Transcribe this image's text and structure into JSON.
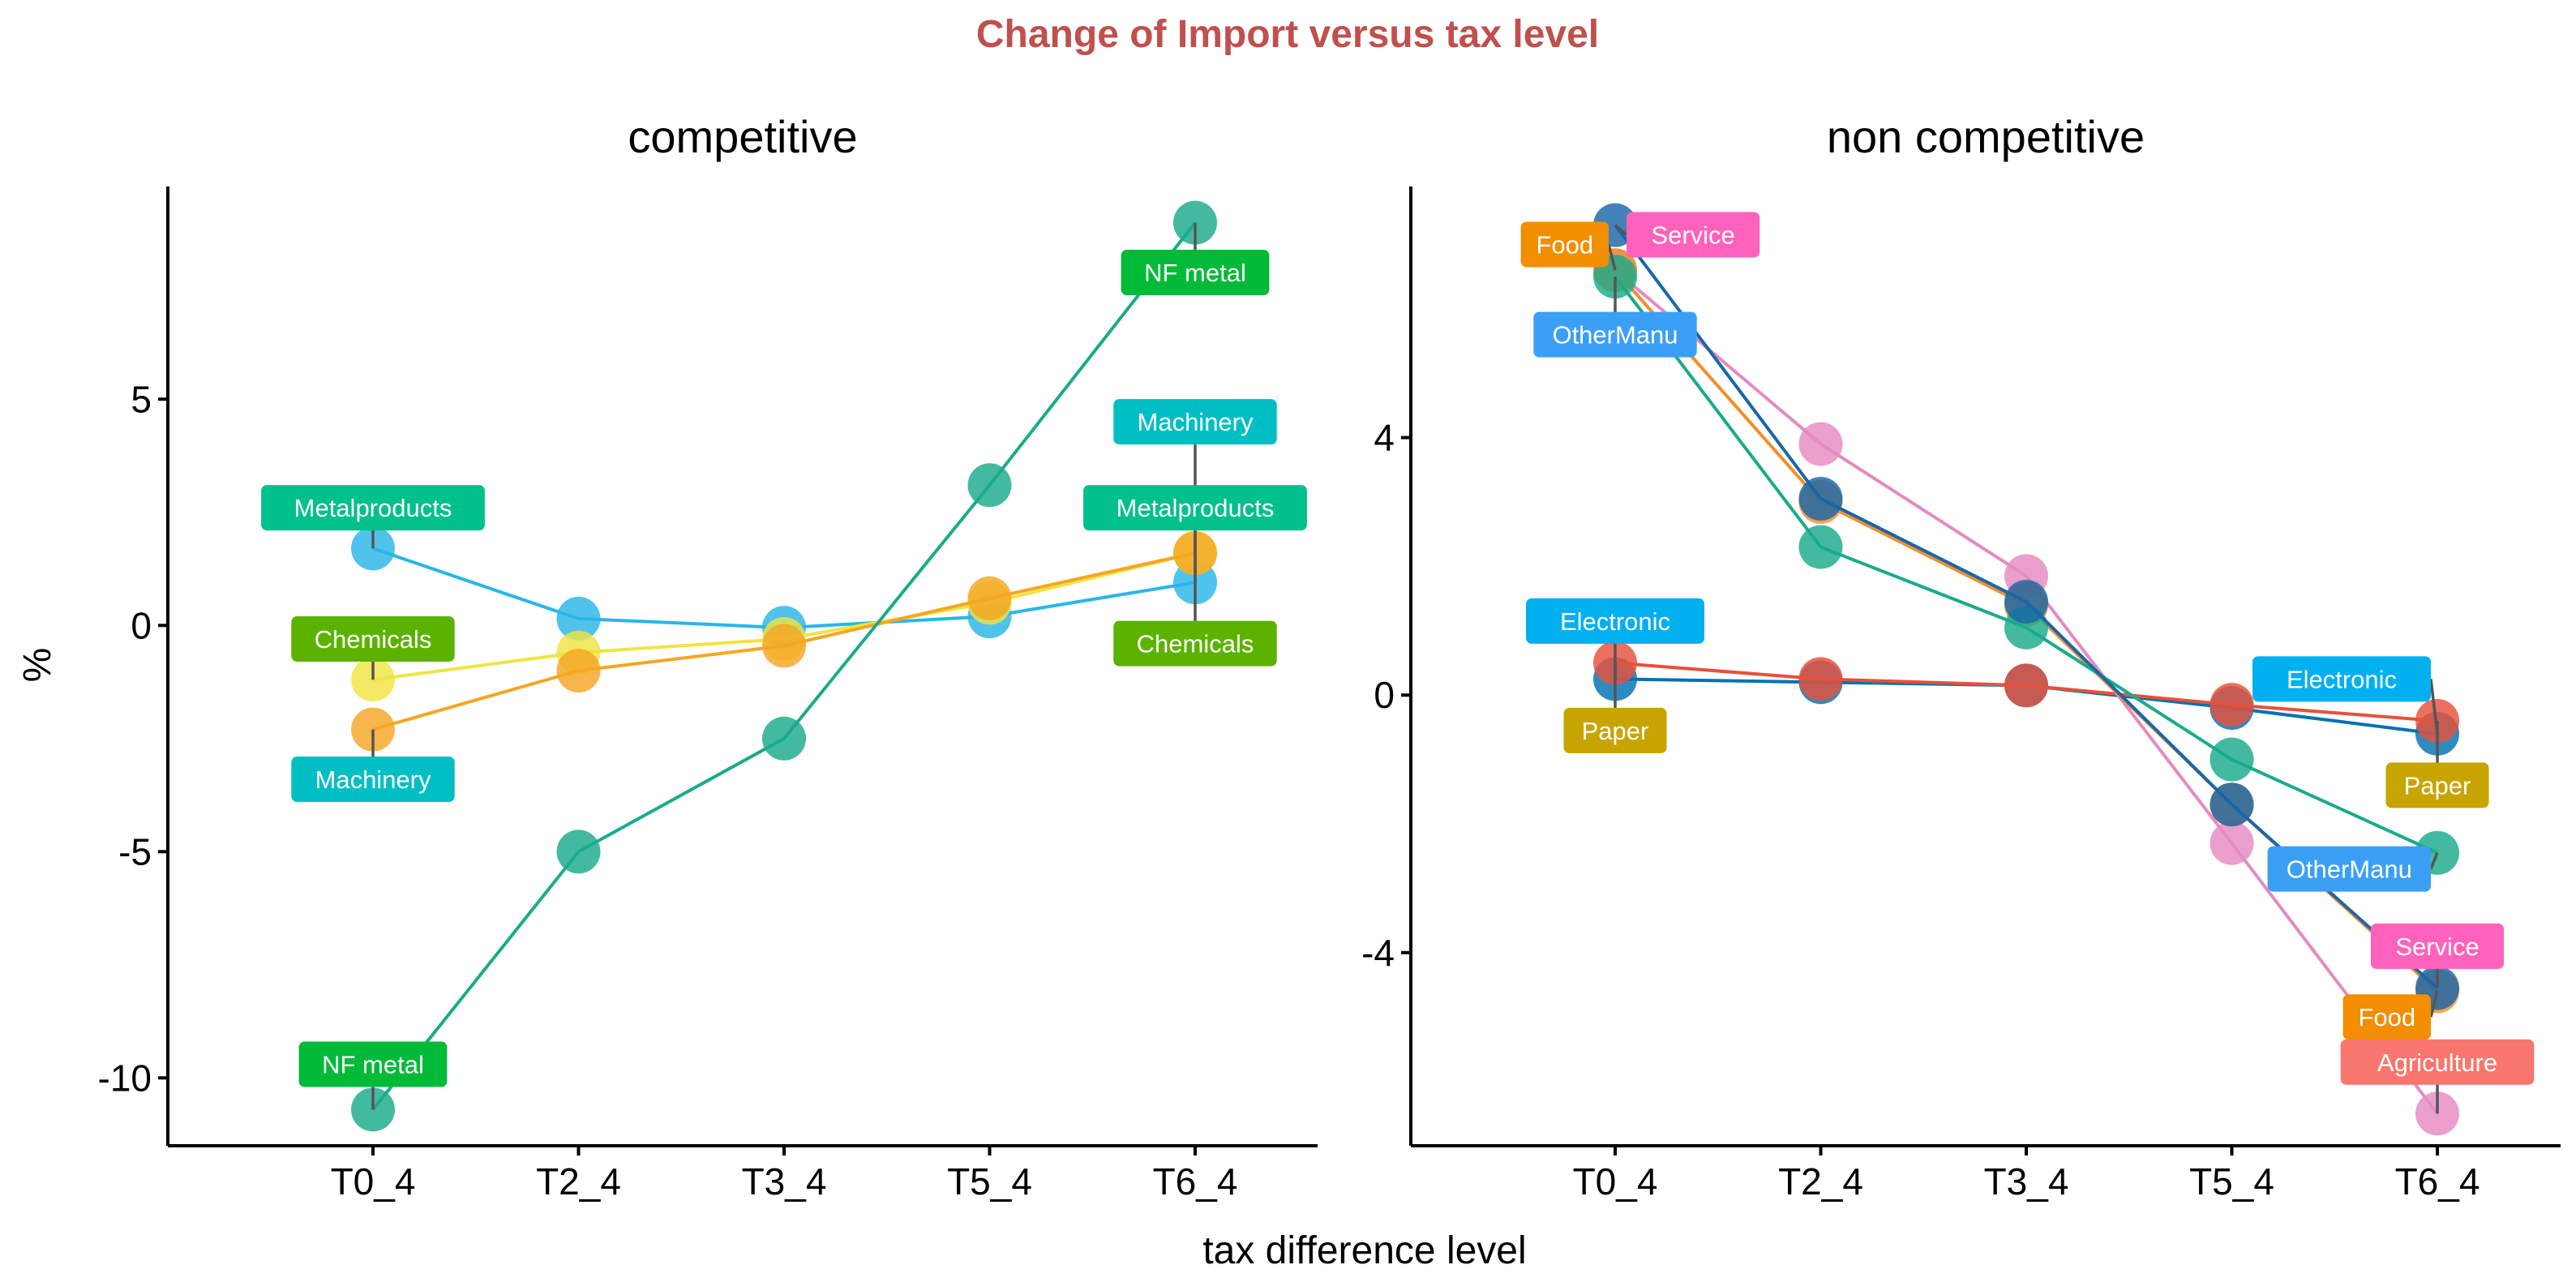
{
  "chart_data": {
    "type": "line",
    "title": "Change of Import versus tax level",
    "xlabel": "tax difference level",
    "ylabel": "%",
    "categories": [
      "T0_4",
      "T2_4",
      "T3_4",
      "T5_4",
      "T6_4"
    ],
    "colors": {
      "title": "#c0504d"
    },
    "panels": [
      {
        "name": "competitive",
        "ylim": [
          -11.5,
          9.7
        ],
        "yticks": [
          -10,
          -5,
          0,
          5
        ],
        "ytick_labels": [
          "-10",
          "-5",
          "0",
          "5"
        ],
        "series": [
          {
            "name": "Metalproducts",
            "color": "#29b6e8",
            "values": [
              1.7,
              0.15,
              -0.05,
              0.2,
              0.95
            ]
          },
          {
            "name": "Chemicals",
            "color": "#f0e442",
            "values": [
              -1.2,
              -0.6,
              -0.3,
              0.5,
              1.6
            ]
          },
          {
            "name": "Machinery",
            "color": "#f5a623",
            "values": [
              -2.3,
              -1.0,
              -0.45,
              0.6,
              1.6
            ]
          },
          {
            "name": "NF metal",
            "color": "#1aab8a",
            "values": [
              -10.7,
              -5.0,
              -2.5,
              3.1,
              8.9
            ]
          }
        ],
        "labels": [
          {
            "text": "Metalproducts",
            "series": "Metalproducts",
            "category": "T0_4",
            "value": 2.6,
            "color": "#00c08b"
          },
          {
            "text": "Chemicals",
            "series": "Chemicals",
            "category": "T0_4",
            "value": -0.3,
            "color": "#5bb300"
          },
          {
            "text": "Machinery",
            "series": "Machinery",
            "category": "T0_4",
            "value": -3.4,
            "color": "#00bfc4"
          },
          {
            "text": "NF metal",
            "series": "NF metal",
            "category": "T0_4",
            "value": -9.7,
            "color": "#00ba38"
          },
          {
            "text": "NF metal",
            "series": "NF metal",
            "category": "T6_4",
            "value": 7.8,
            "color": "#00ba38"
          },
          {
            "text": "Machinery",
            "series": "Machinery",
            "category": "T6_4",
            "value": 4.5,
            "color": "#00bfc4"
          },
          {
            "text": "Metalproducts",
            "series": "Metalproducts",
            "category": "T6_4",
            "value": 2.6,
            "color": "#00c08b"
          },
          {
            "text": "Chemicals",
            "series": "Chemicals",
            "category": "T6_4",
            "value": -0.4,
            "color": "#5bb300"
          }
        ]
      },
      {
        "name": "non competitive",
        "ylim": [
          -7.0,
          7.9
        ],
        "yticks": [
          -4,
          0,
          4
        ],
        "ytick_labels": [
          "-4",
          "0",
          "4"
        ],
        "series": [
          {
            "name": "Electronic",
            "color": "#0072b2",
            "values": [
              0.25,
              0.2,
              0.15,
              -0.2,
              -0.6
            ]
          },
          {
            "name": "Paper",
            "color": "#e8503a",
            "values": [
              0.5,
              0.25,
              0.15,
              -0.15,
              -0.4
            ]
          },
          {
            "name": "Agriculture",
            "color": "#e58ac2",
            "values": [
              6.6,
              3.9,
              1.85,
              -2.3,
              -6.5
            ]
          },
          {
            "name": "Food",
            "color": "#f28e2b",
            "values": [
              6.6,
              3.0,
              1.4,
              -1.7,
              -4.6
            ]
          },
          {
            "name": "OtherManu",
            "color": "#1aab8a",
            "values": [
              6.5,
              2.3,
              1.05,
              -1.0,
              -2.45
            ]
          },
          {
            "name": "Service",
            "color": "#1967a8",
            "values": [
              7.3,
              3.05,
              1.45,
              -1.7,
              -4.55
            ]
          }
        ],
        "labels": [
          {
            "text": "Food",
            "series": "Food",
            "category": "T0_4",
            "value": 7.0,
            "color": "#f28e00",
            "side": "left"
          },
          {
            "text": "Service",
            "series": "Service",
            "category": "T0_4",
            "value": 7.15,
            "color": "#ff62bc",
            "side": "right"
          },
          {
            "text": "OtherManu",
            "series": "OtherManu",
            "category": "T0_4",
            "value": 5.6,
            "color": "#3b9ff5",
            "side": "center"
          },
          {
            "text": "Electronic",
            "series": "Electronic",
            "category": "T0_4",
            "value": 1.15,
            "color": "#00b0f0",
            "side": "center"
          },
          {
            "text": "Paper",
            "series": "Paper",
            "category": "T0_4",
            "value": -0.55,
            "color": "#c8a400",
            "side": "center"
          },
          {
            "text": "Electronic",
            "series": "Electronic",
            "category": "T6_4",
            "value": 0.25,
            "color": "#00b0f0",
            "side": "left"
          },
          {
            "text": "Paper",
            "series": "Paper",
            "category": "T6_4",
            "value": -1.4,
            "color": "#c8a400",
            "side": "center"
          },
          {
            "text": "OtherManu",
            "series": "OtherManu",
            "category": "T6_4",
            "value": -2.7,
            "color": "#3b9ff5",
            "side": "left"
          },
          {
            "text": "Service",
            "series": "Service",
            "category": "T6_4",
            "value": -3.9,
            "color": "#ff62bc",
            "side": "center"
          },
          {
            "text": "Food",
            "series": "Food",
            "category": "T6_4",
            "value": -5.0,
            "color": "#f28e00",
            "side": "left"
          },
          {
            "text": "Agriculture",
            "series": "Agriculture",
            "category": "T6_4",
            "value": -5.7,
            "color": "#f8766d",
            "side": "center"
          }
        ]
      }
    ]
  }
}
